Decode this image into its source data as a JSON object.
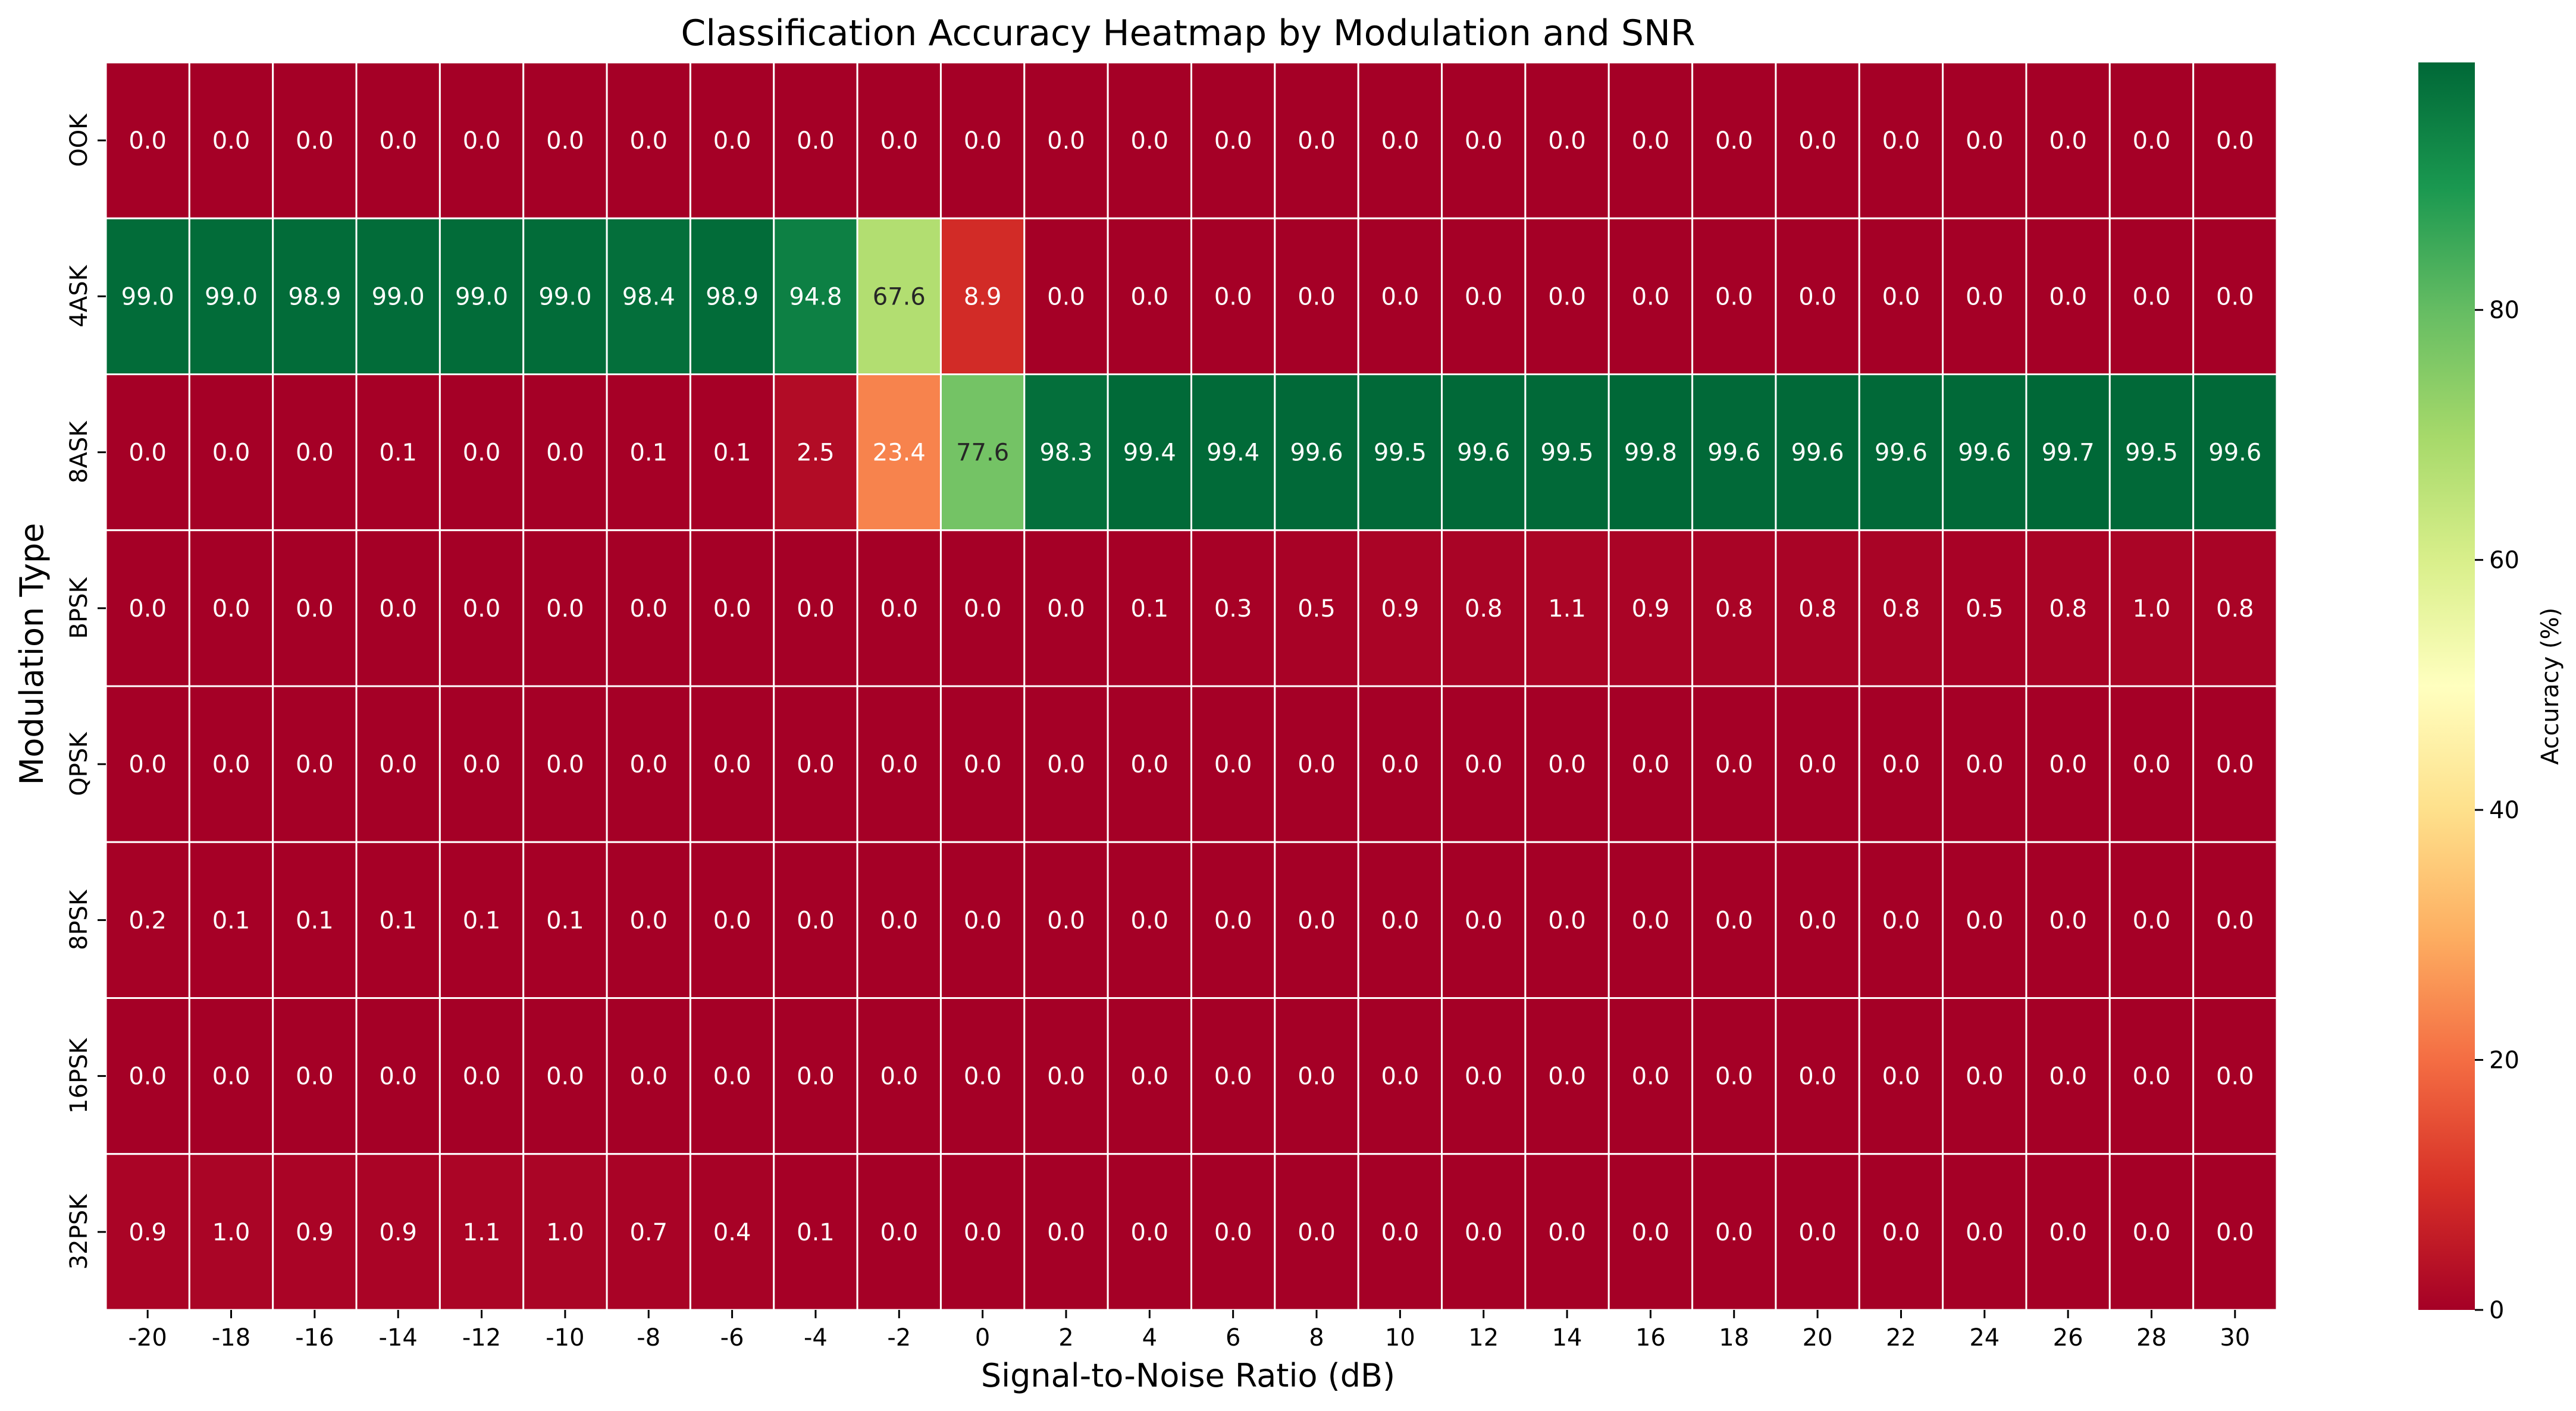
{
  "chart_data": {
    "type": "heatmap",
    "title": "Classification Accuracy Heatmap by Modulation and SNR",
    "xlabel": "Signal-to-Noise Ratio (dB)",
    "ylabel": "Modulation Type",
    "x": [
      "-20",
      "-18",
      "-16",
      "-14",
      "-12",
      "-10",
      "-8",
      "-6",
      "-4",
      "-2",
      "0",
      "2",
      "4",
      "6",
      "8",
      "10",
      "12",
      "14",
      "16",
      "18",
      "20",
      "22",
      "24",
      "26",
      "28",
      "30"
    ],
    "y": [
      "OOK",
      "4ASK",
      "8ASK",
      "BPSK",
      "QPSK",
      "8PSK",
      "16PSK",
      "32PSK"
    ],
    "values": [
      [
        0.0,
        0.0,
        0.0,
        0.0,
        0.0,
        0.0,
        0.0,
        0.0,
        0.0,
        0.0,
        0.0,
        0.0,
        0.0,
        0.0,
        0.0,
        0.0,
        0.0,
        0.0,
        0.0,
        0.0,
        0.0,
        0.0,
        0.0,
        0.0,
        0.0,
        0.0
      ],
      [
        99.0,
        99.0,
        98.9,
        99.0,
        99.0,
        99.0,
        98.4,
        98.9,
        94.8,
        67.6,
        8.9,
        0.0,
        0.0,
        0.0,
        0.0,
        0.0,
        0.0,
        0.0,
        0.0,
        0.0,
        0.0,
        0.0,
        0.0,
        0.0,
        0.0,
        0.0
      ],
      [
        0.0,
        0.0,
        0.0,
        0.1,
        0.0,
        0.0,
        0.1,
        0.1,
        2.5,
        23.4,
        77.6,
        98.3,
        99.4,
        99.4,
        99.6,
        99.5,
        99.6,
        99.5,
        99.8,
        99.6,
        99.6,
        99.6,
        99.6,
        99.7,
        99.5,
        99.6
      ],
      [
        0.0,
        0.0,
        0.0,
        0.0,
        0.0,
        0.0,
        0.0,
        0.0,
        0.0,
        0.0,
        0.0,
        0.0,
        0.1,
        0.3,
        0.5,
        0.9,
        0.8,
        1.1,
        0.9,
        0.8,
        0.8,
        0.8,
        0.5,
        0.8,
        1.0,
        0.8
      ],
      [
        0.0,
        0.0,
        0.0,
        0.0,
        0.0,
        0.0,
        0.0,
        0.0,
        0.0,
        0.0,
        0.0,
        0.0,
        0.0,
        0.0,
        0.0,
        0.0,
        0.0,
        0.0,
        0.0,
        0.0,
        0.0,
        0.0,
        0.0,
        0.0,
        0.0,
        0.0
      ],
      [
        0.2,
        0.1,
        0.1,
        0.1,
        0.1,
        0.1,
        0.0,
        0.0,
        0.0,
        0.0,
        0.0,
        0.0,
        0.0,
        0.0,
        0.0,
        0.0,
        0.0,
        0.0,
        0.0,
        0.0,
        0.0,
        0.0,
        0.0,
        0.0,
        0.0,
        0.0
      ],
      [
        0.0,
        0.0,
        0.0,
        0.0,
        0.0,
        0.0,
        0.0,
        0.0,
        0.0,
        0.0,
        0.0,
        0.0,
        0.0,
        0.0,
        0.0,
        0.0,
        0.0,
        0.0,
        0.0,
        0.0,
        0.0,
        0.0,
        0.0,
        0.0,
        0.0,
        0.0
      ],
      [
        0.9,
        1.0,
        0.9,
        0.9,
        1.1,
        1.0,
        0.7,
        0.4,
        0.1,
        0.0,
        0.0,
        0.0,
        0.0,
        0.0,
        0.0,
        0.0,
        0.0,
        0.0,
        0.0,
        0.0,
        0.0,
        0.0,
        0.0,
        0.0,
        0.0,
        0.0
      ]
    ],
    "colormap": "RdYlGn",
    "vmin": 0,
    "vmax": 99.8,
    "annotations_format": "0.1f",
    "colorbar": {
      "label": "Accuracy (%)",
      "ticks": [
        "0",
        "20",
        "40",
        "60",
        "80"
      ],
      "tick_values": [
        0,
        20,
        40,
        60,
        80
      ]
    },
    "grid": false,
    "cell_border_color": "#ffffff"
  }
}
